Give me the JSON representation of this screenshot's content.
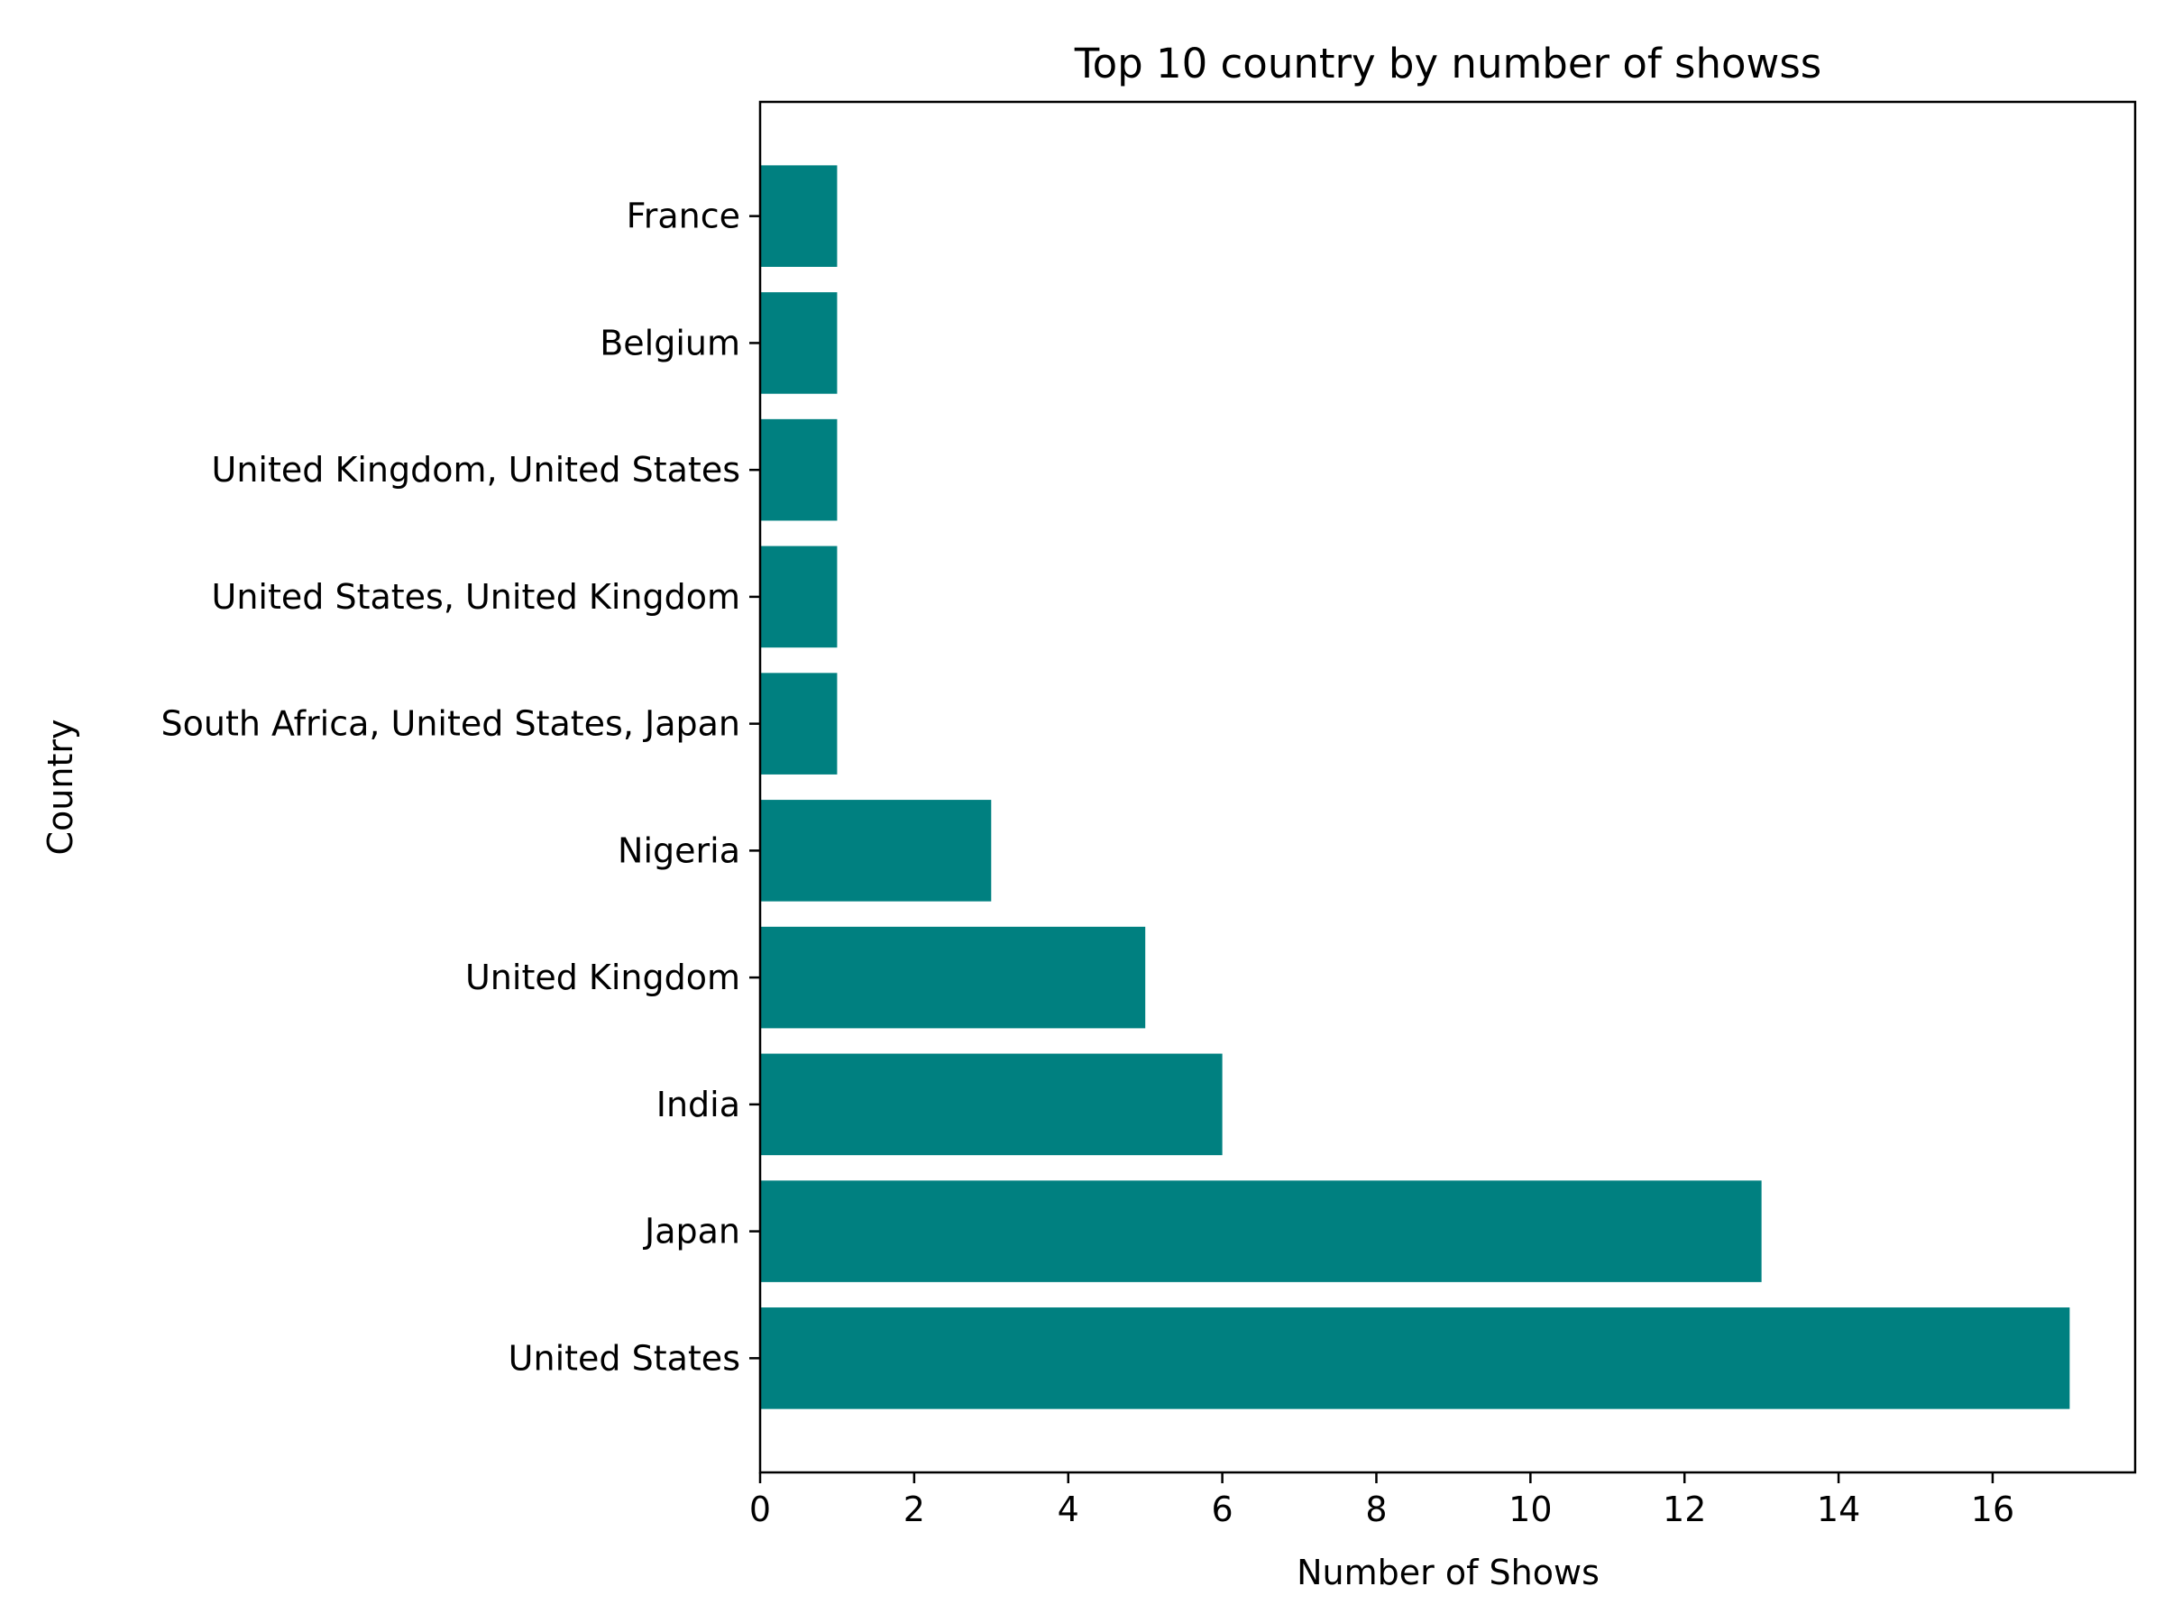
{
  "chart_data": {
    "type": "bar",
    "orientation": "horizontal",
    "title": "Top 10 country by number of showss",
    "xlabel": "Number of Shows",
    "ylabel": "Country",
    "categories": [
      "United States",
      "Japan",
      "India",
      "United Kingdom",
      "Nigeria",
      "South Africa, United States, Japan",
      "United States, United Kingdom",
      "United Kingdom, United States",
      "Belgium",
      "France"
    ],
    "values": [
      17,
      13,
      6,
      5,
      3,
      1,
      1,
      1,
      1,
      1
    ],
    "xlim": [
      0,
      17.85
    ],
    "xticks": [
      0,
      2,
      4,
      6,
      8,
      10,
      12,
      14,
      16
    ],
    "bar_color": "#008080",
    "grid": false,
    "legend": "none"
  }
}
